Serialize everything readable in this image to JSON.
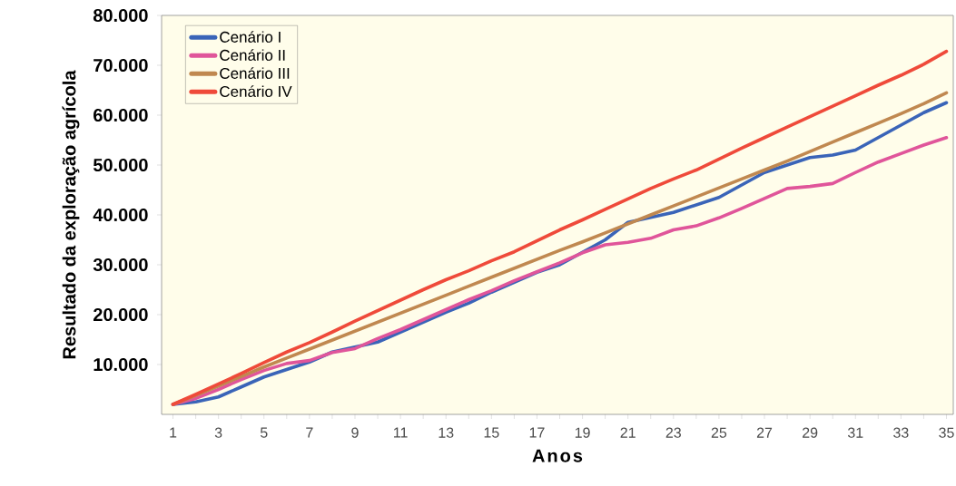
{
  "chart_data": {
    "type": "line",
    "xlabel": "Anos",
    "ylabel": "Resultado da exploração agrícola",
    "categories": [
      "1",
      null,
      "3",
      null,
      "5",
      null,
      "7",
      null,
      "9",
      null,
      "11",
      null,
      "13",
      null,
      "15",
      null,
      "17",
      null,
      "19",
      null,
      "21",
      null,
      "23",
      null,
      "25",
      null,
      "27",
      null,
      "29",
      null,
      "31",
      null,
      "33",
      null,
      "35"
    ],
    "ylim": [
      0,
      80000
    ],
    "yticks": [
      {
        "value": 10000,
        "label": "10.000"
      },
      {
        "value": 20000,
        "label": "20.000"
      },
      {
        "value": 30000,
        "label": "30.000"
      },
      {
        "value": 40000,
        "label": "40.000"
      },
      {
        "value": 50000,
        "label": "50.000"
      },
      {
        "value": 60000,
        "label": "60.000"
      },
      {
        "value": 70000,
        "label": "70.000"
      },
      {
        "value": 80000,
        "label": "80.000"
      }
    ],
    "grid": false,
    "legend": "top left",
    "marker": "none",
    "line_style": "solid",
    "series": [
      {
        "name": "Cenário I",
        "color": "#3a64b8",
        "values": [
          2000,
          2500,
          3500,
          5500,
          7500,
          9000,
          10500,
          12500,
          13500,
          14500,
          16500,
          18500,
          20500,
          22300,
          24500,
          26500,
          28500,
          30000,
          32500,
          35000,
          38500,
          39500,
          40500,
          42000,
          43500,
          46000,
          48500,
          50000,
          51500,
          52000,
          53000,
          55500,
          58000,
          60500,
          62500
        ]
      },
      {
        "name": "Cenário II",
        "color": "#e0559a",
        "values": [
          2000,
          3200,
          5000,
          7000,
          8800,
          10200,
          10800,
          12400,
          13200,
          15200,
          17000,
          19000,
          21000,
          23000,
          24800,
          26800,
          28600,
          30400,
          32400,
          34000,
          34500,
          35300,
          37000,
          37800,
          39400,
          41300,
          43300,
          45300,
          45700,
          46300,
          48500,
          50600,
          52300,
          54000,
          55500
        ]
      },
      {
        "name": "Cenário III",
        "color": "#c08850",
        "values": [
          2000,
          3800,
          5700,
          7600,
          9500,
          11300,
          13100,
          14900,
          16700,
          18500,
          20300,
          22100,
          23900,
          25700,
          27500,
          29300,
          31100,
          32900,
          34600,
          36400,
          38200,
          40000,
          41800,
          43600,
          45400,
          47200,
          49000,
          50800,
          52700,
          54600,
          56500,
          58400,
          60300,
          62300,
          64500
        ]
      },
      {
        "name": "Cenário IV",
        "color": "#ef4a3a",
        "values": [
          2000,
          4000,
          6100,
          8200,
          10400,
          12500,
          14400,
          16500,
          18700,
          20800,
          22900,
          25000,
          27000,
          28800,
          30800,
          32600,
          34800,
          37000,
          39000,
          41100,
          43200,
          45300,
          47200,
          49000,
          51200,
          53400,
          55500,
          57600,
          59700,
          61800,
          63900,
          66000,
          68000,
          70200,
          72800
        ]
      }
    ]
  }
}
